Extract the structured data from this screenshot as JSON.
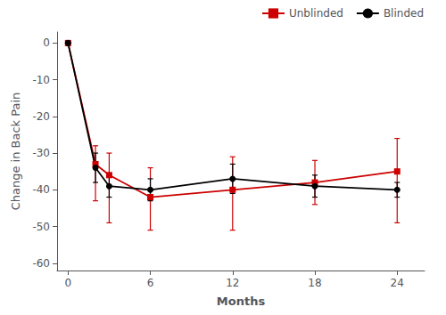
{
  "chart_data": {
    "type": "line",
    "xlabel": "Months",
    "ylabel": "Change in Back Pain",
    "x": [
      0,
      2,
      3,
      6,
      12,
      18,
      24
    ],
    "series": [
      {
        "name": "Unblinded",
        "color": "#cc0000",
        "marker": "square",
        "values": [
          0,
          -33,
          -36,
          -42,
          -40,
          -38,
          -35
        ],
        "yerr_upper": [
          0,
          5,
          6,
          8,
          9,
          6,
          9
        ],
        "yerr_lower": [
          0,
          10,
          13,
          9,
          11,
          6,
          14
        ]
      },
      {
        "name": "Blinded",
        "color": "#000000",
        "marker": "circle",
        "values": [
          0,
          -34,
          -39,
          -40,
          -37,
          -39,
          -40
        ],
        "yerr_upper": [
          0,
          4,
          3,
          3,
          4,
          3,
          2
        ],
        "yerr_lower": [
          0,
          4,
          3,
          3,
          4,
          3,
          2
        ]
      }
    ],
    "xlim": [
      -0.8,
      26
    ],
    "xticks": [
      0,
      6,
      12,
      18,
      24
    ],
    "ylim": [
      -62,
      3
    ],
    "yticks": [
      0,
      -10,
      -20,
      -30,
      -40,
      -50,
      -60
    ],
    "grid": false,
    "legend": "upper right"
  }
}
